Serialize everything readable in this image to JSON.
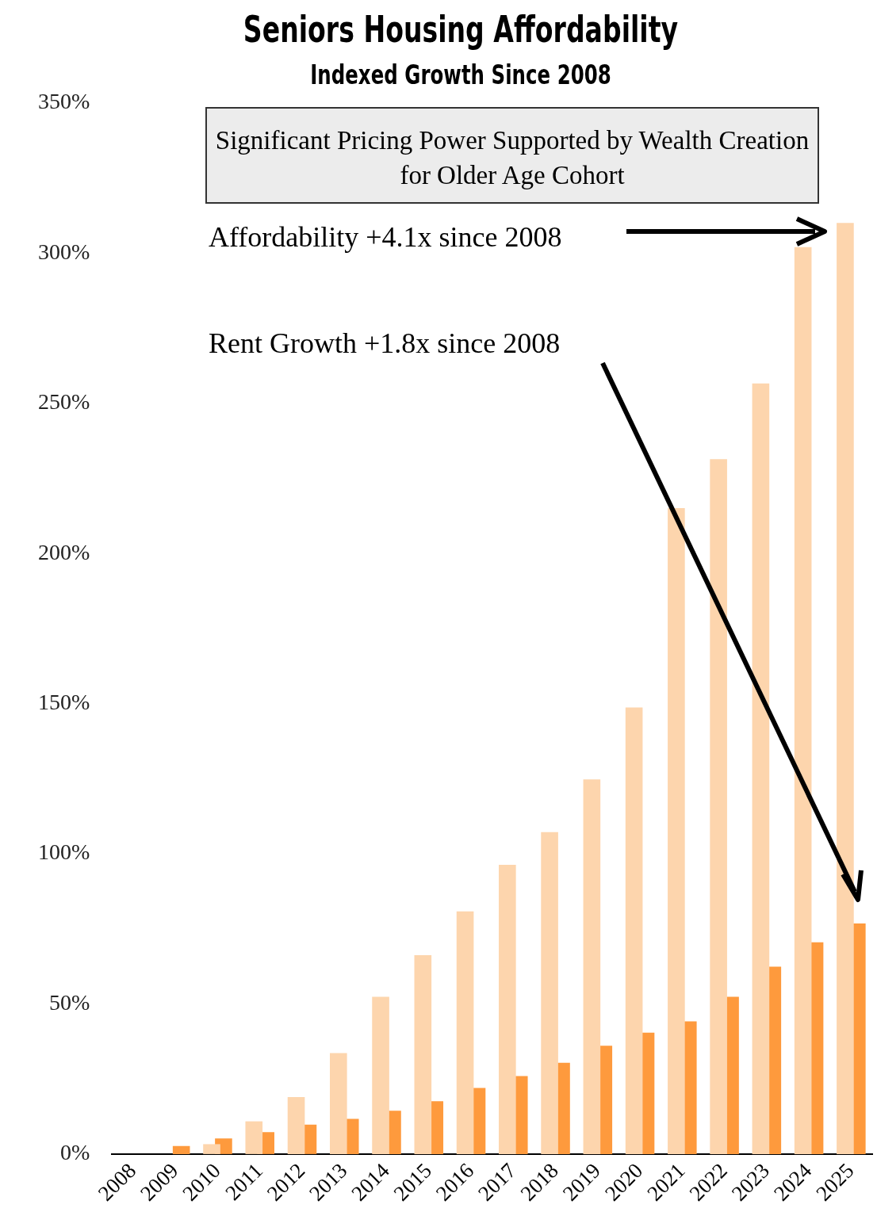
{
  "chart_data": {
    "type": "bar",
    "title": "Seniors Housing Affordability",
    "subtitle": "Indexed Growth Since 2008",
    "categories": [
      "2008",
      "2009",
      "2010",
      "2011",
      "2012",
      "2013",
      "2014",
      "2015",
      "2016",
      "2017",
      "2018",
      "2019",
      "2020",
      "2021",
      "2022",
      "2023",
      "2024",
      "2025"
    ],
    "series": [
      {
        "color": "#fdd5ad",
        "values": [
          0,
          null,
          3.3,
          10.9,
          19,
          33.6,
          52.4,
          66.2,
          80.8,
          96.3,
          107.2,
          124.8,
          148.7,
          215.1,
          231.4,
          256.6,
          302,
          310.1
        ]
      },
      {
        "color": "#fe9a3d",
        "values": [
          0,
          2.7,
          5.2,
          7.3,
          9.8,
          11.7,
          14.4,
          17.6,
          22,
          26,
          30.4,
          36.1,
          40.4,
          44.2,
          52.4,
          62.4,
          70.5,
          76.8
        ]
      }
    ],
    "ylim": [
      0,
      350
    ],
    "yticks": [
      {
        "value": 0,
        "label": "0%"
      },
      {
        "value": 50,
        "label": "50%"
      },
      {
        "value": 100,
        "label": "100%"
      },
      {
        "value": 150,
        "label": "150%"
      },
      {
        "value": 200,
        "label": "200%"
      },
      {
        "value": 250,
        "label": "250%"
      },
      {
        "value": 300,
        "label": "300%"
      },
      {
        "value": 350,
        "label": "350%"
      }
    ],
    "grid": false,
    "legend": false,
    "annotations": [
      "Significant Pricing Power Supported by Wealth Creation for Older Age Cohort",
      "Affordability +4.1x since 2008",
      "Rent Growth +1.8x since 2008"
    ]
  }
}
